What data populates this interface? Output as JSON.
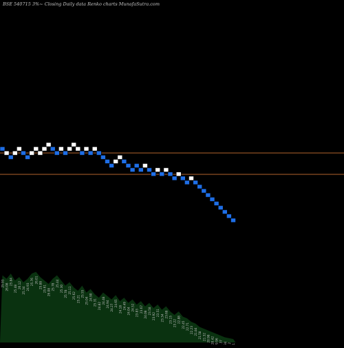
{
  "header": {
    "title": "BSE 540715 3%~  Closing Daily data  Renko  charts MunafaSutra.com"
  },
  "colors": {
    "background": "#000000",
    "up_brick": "#ffffff",
    "down_brick": "#1e6ee6",
    "reference_line": "#b4642c",
    "volume_fill": "#0a3210",
    "label_text": "#c0c0c0"
  },
  "chart_data": {
    "type": "renko",
    "brick_size_percent": 3,
    "reference_lines": [
      "upper",
      "lower"
    ],
    "bricks": [
      {
        "dir": "down",
        "level": 0
      },
      {
        "dir": "up",
        "level": 1
      },
      {
        "dir": "down",
        "level": 2
      },
      {
        "dir": "up",
        "level": 1
      },
      {
        "dir": "up",
        "level": 0
      },
      {
        "dir": "down",
        "level": 1
      },
      {
        "dir": "down",
        "level": 2
      },
      {
        "dir": "up",
        "level": 1
      },
      {
        "dir": "up",
        "level": 0
      },
      {
        "dir": "up",
        "level": 1
      },
      {
        "dir": "up",
        "level": 0
      },
      {
        "dir": "up",
        "level": -1
      },
      {
        "dir": "down",
        "level": 0
      },
      {
        "dir": "down",
        "level": 1
      },
      {
        "dir": "up",
        "level": 0
      },
      {
        "dir": "down",
        "level": 1
      },
      {
        "dir": "up",
        "level": 0
      },
      {
        "dir": "up",
        "level": -1
      },
      {
        "dir": "up",
        "level": 0
      },
      {
        "dir": "down",
        "level": 1
      },
      {
        "dir": "up",
        "level": 0
      },
      {
        "dir": "down",
        "level": 1
      },
      {
        "dir": "up",
        "level": 0
      },
      {
        "dir": "down",
        "level": 1
      },
      {
        "dir": "down",
        "level": 2
      },
      {
        "dir": "down",
        "level": 3
      },
      {
        "dir": "down",
        "level": 4
      },
      {
        "dir": "up",
        "level": 3
      },
      {
        "dir": "up",
        "level": 2
      },
      {
        "dir": "down",
        "level": 3
      },
      {
        "dir": "down",
        "level": 4
      },
      {
        "dir": "down",
        "level": 5
      },
      {
        "dir": "down",
        "level": 4
      },
      {
        "dir": "down",
        "level": 5
      },
      {
        "dir": "up",
        "level": 4
      },
      {
        "dir": "down",
        "level": 5
      },
      {
        "dir": "down",
        "level": 6
      },
      {
        "dir": "up",
        "level": 5
      },
      {
        "dir": "down",
        "level": 6
      },
      {
        "dir": "up",
        "level": 5
      },
      {
        "dir": "down",
        "level": 6
      },
      {
        "dir": "down",
        "level": 7
      },
      {
        "dir": "up",
        "level": 6
      },
      {
        "dir": "down",
        "level": 7
      },
      {
        "dir": "down",
        "level": 8
      },
      {
        "dir": "up",
        "level": 7
      },
      {
        "dir": "down",
        "level": 8
      },
      {
        "dir": "down",
        "level": 9
      },
      {
        "dir": "down",
        "level": 10
      },
      {
        "dir": "down",
        "level": 11
      },
      {
        "dir": "down",
        "level": 12
      },
      {
        "dir": "down",
        "level": 13
      },
      {
        "dir": "down",
        "level": 14
      },
      {
        "dir": "down",
        "level": 15
      },
      {
        "dir": "down",
        "level": 16
      },
      {
        "dir": "down",
        "level": 17
      }
    ],
    "volume": [
      0.78,
      0.74,
      0.8,
      0.72,
      0.76,
      0.7,
      0.74,
      0.8,
      0.82,
      0.76,
      0.72,
      0.68,
      0.74,
      0.78,
      0.72,
      0.66,
      0.7,
      0.64,
      0.6,
      0.66,
      0.58,
      0.62,
      0.56,
      0.52,
      0.58,
      0.54,
      0.5,
      0.55,
      0.48,
      0.52,
      0.46,
      0.5,
      0.44,
      0.48,
      0.42,
      0.46,
      0.4,
      0.44,
      0.38,
      0.42,
      0.36,
      0.32,
      0.36,
      0.3,
      0.28,
      0.24,
      0.22,
      0.18,
      0.16,
      0.14,
      0.12,
      0.1,
      0.08,
      0.06,
      0.05,
      0.04
    ],
    "price_labels": [
      "25.93",
      "26.08",
      "25.84",
      "25.48",
      "26.12",
      "25.34",
      "24.93",
      "25.76",
      "26.01",
      "25.88",
      "25.61",
      "26.08",
      "25.78",
      "25.44",
      "25.30",
      "25.78",
      "25.11",
      "25.62",
      "25.21",
      "25.55",
      "25.04",
      "24.90",
      "25.31",
      "24.82",
      "24.48",
      "24.94",
      "24.27",
      "24.65",
      "24.18",
      "24.49",
      "24.04",
      "24.52",
      "23.83",
      "23.67",
      "24.08",
      "23.58",
      "23.92",
      "23.51",
      "23.34",
      "23.68",
      "23.15",
      "23.22",
      "22.88",
      "22.45",
      "22.71",
      "22.23",
      "21.84",
      "21.58",
      "21.32",
      "20.98",
      "20.42",
      "19.96",
      "19.37",
      "18.84",
      "18.12",
      "17.51"
    ]
  }
}
